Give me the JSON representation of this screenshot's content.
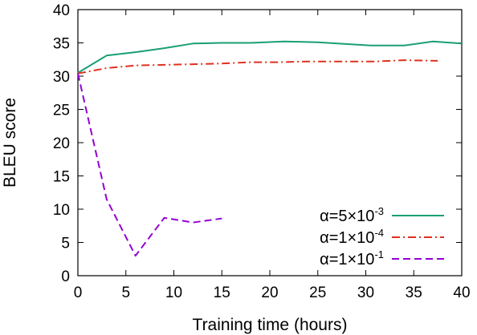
{
  "chart_data": {
    "type": "line",
    "title": "",
    "xlabel": "Training time (hours)",
    "ylabel": "BLEU score",
    "xlim": [
      0,
      40
    ],
    "ylim": [
      0,
      40
    ],
    "xticks": [
      0,
      5,
      10,
      15,
      20,
      25,
      30,
      35,
      40
    ],
    "yticks": [
      0,
      5,
      10,
      15,
      20,
      25,
      30,
      35,
      40
    ],
    "grid": false,
    "legend_position": "bottom-right",
    "series": [
      {
        "name": "α=5×10⁻³",
        "legend": {
          "base": "α=5×10",
          "exp": "-3"
        },
        "color": "#1a9e76",
        "dash": "solid",
        "x": [
          0,
          3,
          6,
          9,
          12,
          15,
          18,
          21.5,
          25,
          30.5,
          34,
          37,
          40
        ],
        "y": [
          30.5,
          33.1,
          33.6,
          34.2,
          34.9,
          35.0,
          35.0,
          35.2,
          35.1,
          34.6,
          34.6,
          35.2,
          34.9
        ]
      },
      {
        "name": "α=1×10⁻⁴",
        "legend": {
          "base": "α=1×10",
          "exp": "-4"
        },
        "color": "#e0301e",
        "dash": "dashdot",
        "x": [
          0,
          3,
          6,
          9,
          12,
          15,
          18,
          21,
          24,
          27,
          31,
          34,
          37.5
        ],
        "y": [
          30.4,
          31.2,
          31.6,
          31.7,
          31.8,
          31.9,
          32.1,
          32.1,
          32.2,
          32.2,
          32.2,
          32.4,
          32.3
        ]
      },
      {
        "name": "α=1×10⁻¹",
        "legend": {
          "base": "α=1×10",
          "exp": "-1"
        },
        "color": "#9400d3",
        "dash": "dashed",
        "x": [
          0,
          3,
          6,
          9,
          12,
          15
        ],
        "y": [
          30.4,
          11.5,
          3.0,
          8.7,
          8.0,
          8.6
        ]
      }
    ]
  }
}
